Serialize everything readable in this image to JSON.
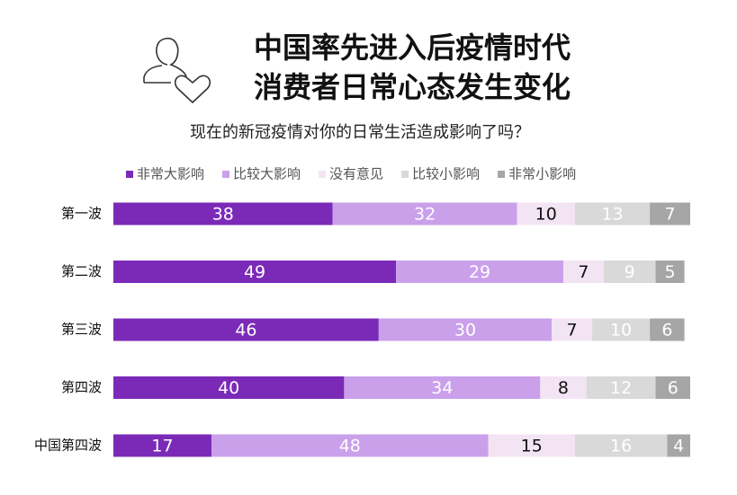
{
  "chart_data": {
    "type": "stacked_barh",
    "title": [
      "中国率先进入后疫情时代",
      "消费者日常心态发生变化"
    ],
    "subtitle": "现在的新冠疫情对你的日常生活造成影响了吗？",
    "categories": [
      "第一波",
      "第二波",
      "第三波",
      "第四波",
      "中国第四波"
    ],
    "series": [
      {
        "name": "非常大影响",
        "color": "#7b2ab8",
        "values": [
          38,
          49,
          46,
          40,
          17
        ]
      },
      {
        "name": "比较大影响",
        "color": "#caa0ea",
        "values": [
          32,
          29,
          30,
          34,
          48
        ]
      },
      {
        "name": "没有意见",
        "color": "#f3e4f4",
        "values": [
          10,
          7,
          7,
          8,
          15
        ]
      },
      {
        "name": "比较小影响",
        "color": "#d9d9d9",
        "values": [
          13,
          9,
          10,
          12,
          16
        ]
      },
      {
        "name": "非常小影响",
        "color": "#a6a6a6",
        "values": [
          7,
          5,
          6,
          6,
          4
        ]
      }
    ],
    "xlim": [
      0,
      100
    ]
  }
}
